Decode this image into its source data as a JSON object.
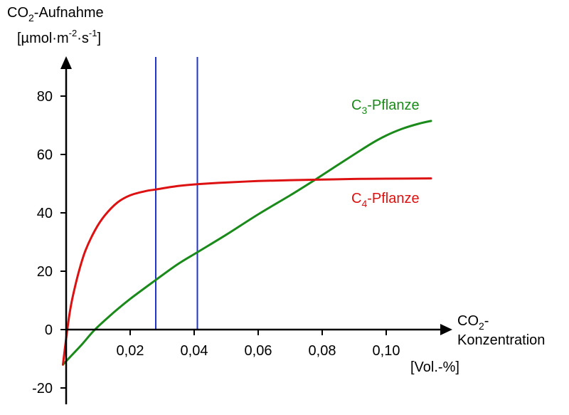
{
  "chart_data": {
    "type": "line",
    "ylabel_line1_main": "CO",
    "ylabel_line1_sub": "2",
    "ylabel_line1_rest": "-Aufnahme",
    "ylabel_line2_a": "[µmol·m",
    "ylabel_line2_sup1": "-2",
    "ylabel_line2_b": "·s",
    "ylabel_line2_sup2": "-1",
    "ylabel_line2_c": "]",
    "xlabel_line1_main": "CO",
    "xlabel_line1_sub": "2",
    "xlabel_line1_rest": "-",
    "xlabel_line2": "Konzentration",
    "xunit": "[Vol.-%]",
    "xlim": [
      0,
      0.115
    ],
    "ylim": [
      -25,
      90
    ],
    "x_ticks": [
      {
        "value": 0.02,
        "label": "0,02"
      },
      {
        "value": 0.04,
        "label": "0,04"
      },
      {
        "value": 0.06,
        "label": "0,06"
      },
      {
        "value": 0.08,
        "label": "0,08"
      },
      {
        "value": 0.1,
        "label": "0,10"
      }
    ],
    "y_ticks": [
      {
        "value": 80,
        "label": "80"
      },
      {
        "value": 60,
        "label": "60"
      },
      {
        "value": 40,
        "label": "40"
      },
      {
        "value": 20,
        "label": "20"
      },
      {
        "value": 0,
        "label": "0"
      },
      {
        "value": -20,
        "label": "-20"
      }
    ],
    "vlines": [
      {
        "x": 0.028,
        "color": "#2233cc"
      },
      {
        "x": 0.041,
        "color": "#2233cc"
      }
    ],
    "series": [
      {
        "label_main": "C",
        "label_sub": "3",
        "label_rest": "-Pflanze",
        "color": "#1a8a1a",
        "x": [
          -0.001,
          0.002,
          0.005,
          0.009,
          0.015,
          0.02,
          0.028,
          0.035,
          0.041,
          0.05,
          0.06,
          0.07,
          0.078,
          0.085,
          0.095,
          0.1,
          0.105,
          0.11,
          0.114
        ],
        "y": [
          -12,
          -8.5,
          -5,
          0,
          6,
          10.5,
          17,
          22.5,
          26.5,
          32.5,
          39.5,
          46,
          51.5,
          56.5,
          63.5,
          66.5,
          68.8,
          70.5,
          71.5
        ]
      },
      {
        "label_main": "C",
        "label_sub": "4",
        "label_rest": "-Pflanze",
        "color": "#dd1111",
        "x": [
          -0.001,
          0.0,
          0.001,
          0.002,
          0.004,
          0.006,
          0.009,
          0.012,
          0.016,
          0.02,
          0.025,
          0.028,
          0.035,
          0.041,
          0.05,
          0.06,
          0.07,
          0.08,
          0.09,
          0.1,
          0.114
        ],
        "y": [
          -12,
          -3,
          5,
          11,
          20,
          27,
          34,
          39,
          43.5,
          46,
          47.5,
          48,
          49.2,
          49.8,
          50.4,
          50.9,
          51.2,
          51.4,
          51.6,
          51.7,
          51.8
        ]
      }
    ]
  }
}
